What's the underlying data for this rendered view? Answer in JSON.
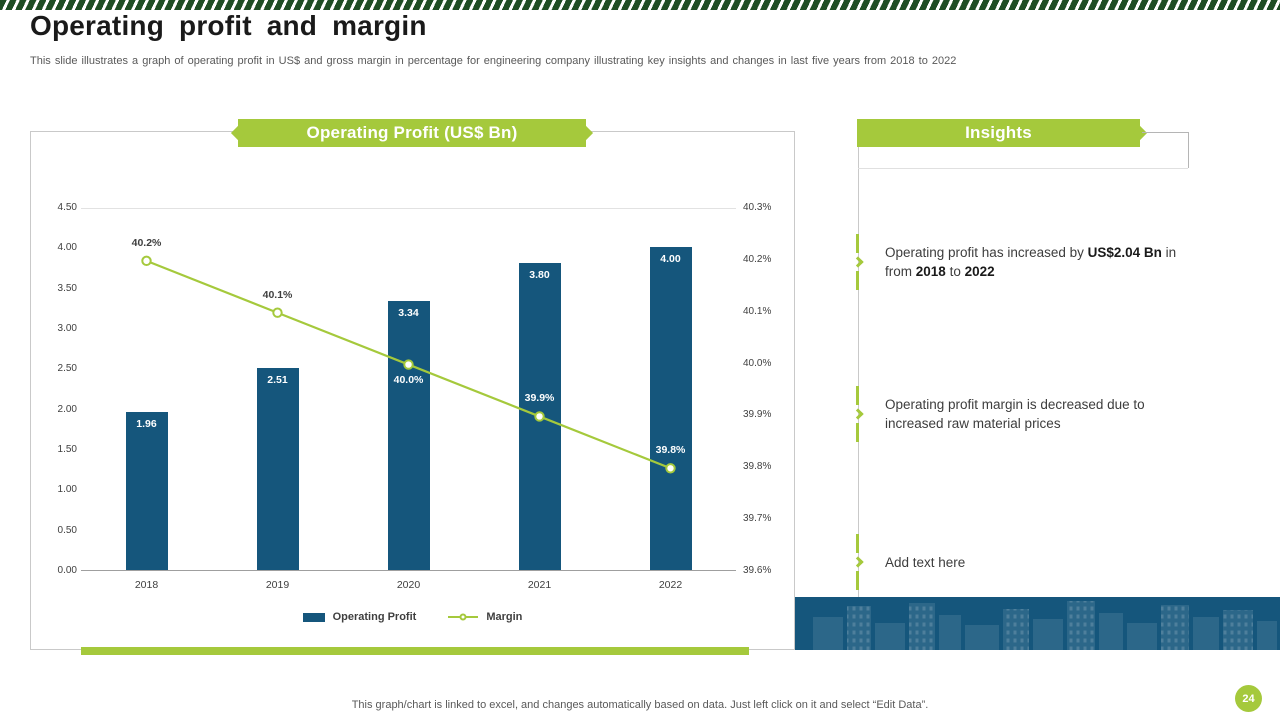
{
  "slide": {
    "title": "Operating profit and margin",
    "subtitle": "This slide illustrates a graph of operating profit in US$ and gross margin in percentage for engineering company illustrating key insights and changes in last five years from 2018 to 2022",
    "page_number": "24",
    "footer": "This graph/chart is linked to excel, and changes automatically based on data. Just left click on it and select “Edit Data”."
  },
  "chart_panel": {
    "banner_title": "Operating Profit (US$ Bn)"
  },
  "chart_data": {
    "type": "bar",
    "title": "Operating Profit (US$ Bn)",
    "categories": [
      "2018",
      "2019",
      "2020",
      "2021",
      "2022"
    ],
    "series": [
      {
        "name": "Operating Profit",
        "type": "bar",
        "values": [
          1.96,
          2.51,
          3.34,
          3.8,
          4.0
        ],
        "labels": [
          "1.96",
          "2.51",
          "3.34",
          "3.80",
          "4.00"
        ],
        "color": "#15567C"
      },
      {
        "name": "Margin",
        "type": "line",
        "values": [
          40.2,
          40.1,
          40.0,
          39.9,
          39.8
        ],
        "labels": [
          "40.2%",
          "40.1%",
          "40.0%",
          "39.9%",
          "39.8%"
        ],
        "label_positions": [
          "above",
          "above",
          "below",
          "above",
          "above"
        ],
        "color": "#A5C93C"
      }
    ],
    "left_axis": {
      "min": 0,
      "max": 4.5,
      "step": 0.5,
      "ticks": [
        "4.50",
        "4.00",
        "3.50",
        "3.00",
        "2.50",
        "2.00",
        "1.50",
        "1.00",
        "0.50",
        "0.00"
      ]
    },
    "right_axis": {
      "min": 39.6,
      "max": 40.3,
      "step": 0.1,
      "ticks": [
        "40.3%",
        "40.2%",
        "40.1%",
        "40.0%",
        "39.9%",
        "39.8%",
        "39.7%",
        "39.6%"
      ]
    },
    "legend_position": "bottom",
    "legend": [
      {
        "label": "Operating Profit",
        "marker": "bar",
        "color": "#15567C"
      },
      {
        "label": "Margin",
        "marker": "line-circle",
        "color": "#A5C93C"
      }
    ],
    "grid": false
  },
  "insights": {
    "banner_title": "Insights",
    "item1": {
      "t1": "Operating profit has increased by ",
      "b1": "US$2.04 Bn",
      "t2": " in from ",
      "b2": "2018",
      "t3": " to ",
      "b3": "2022"
    },
    "item2": "Operating profit margin is decreased due to increased raw material prices",
    "item3": "Add text here"
  },
  "colors": {
    "accent_green": "#A5C93C",
    "bar_blue": "#15567C",
    "stripe_green": "#1F4D24"
  }
}
